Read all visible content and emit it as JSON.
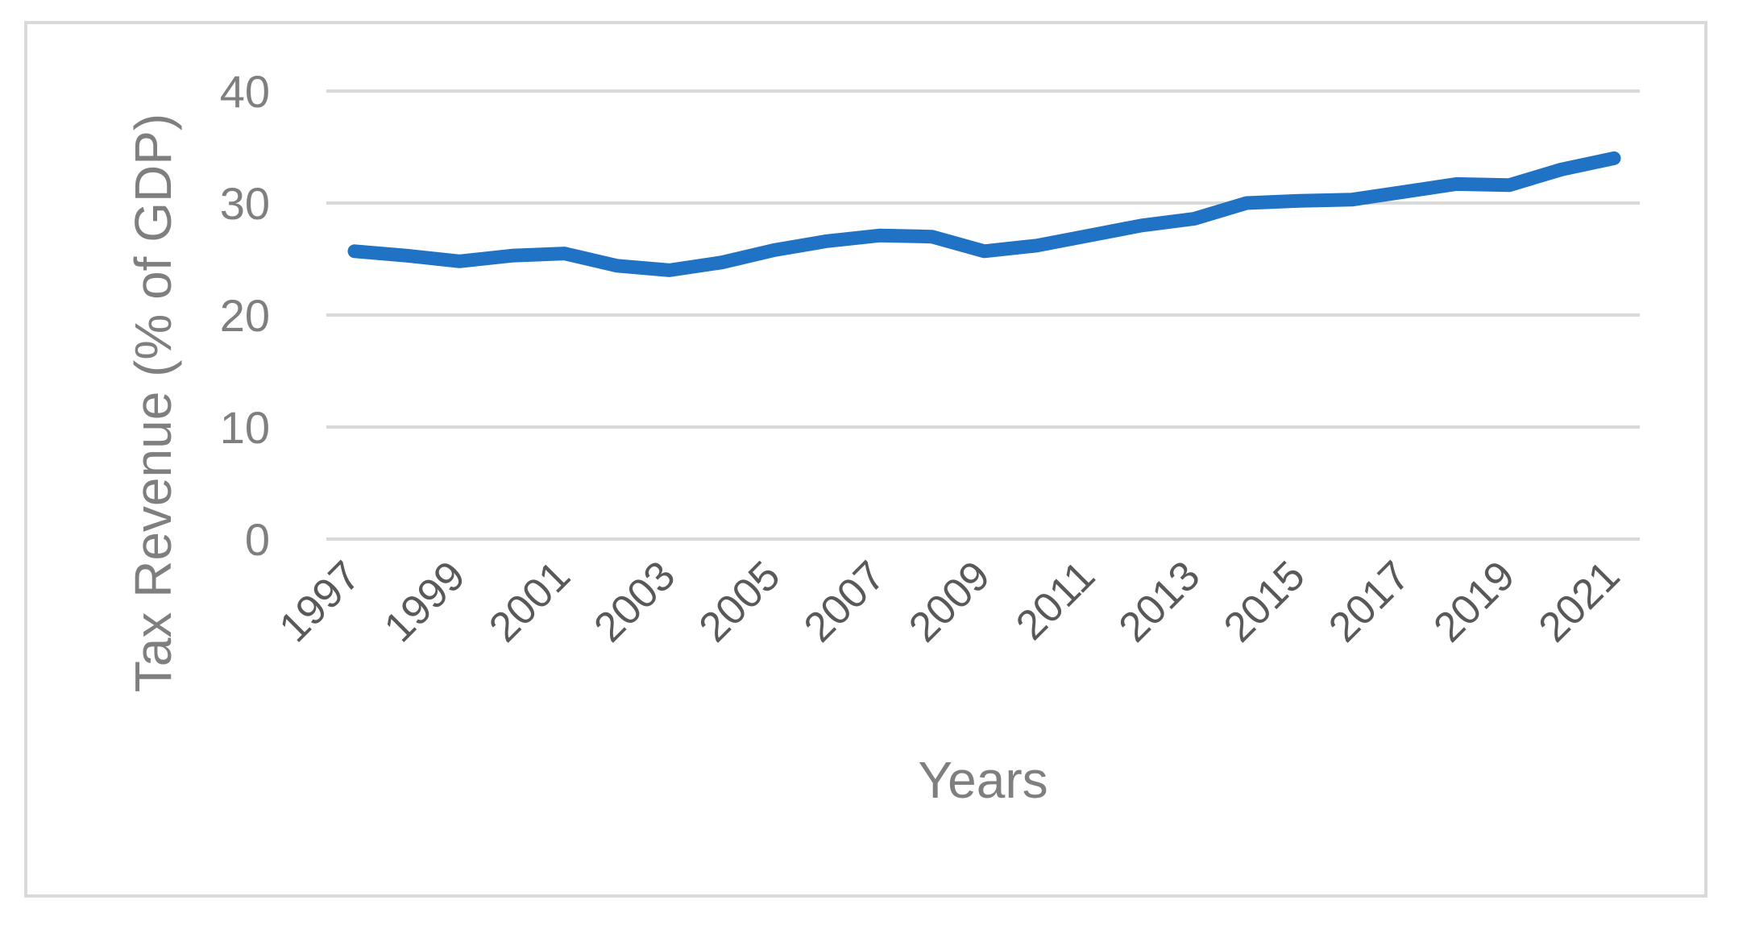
{
  "chart_data": {
    "type": "line",
    "xlabel": "Years",
    "ylabel": "Tax Revenue (% of GDP)",
    "ylim": [
      0,
      40
    ],
    "yticks": [
      0,
      10,
      20,
      30,
      40
    ],
    "x": [
      1997,
      1998,
      1999,
      2000,
      2001,
      2002,
      2003,
      2004,
      2005,
      2006,
      2007,
      2008,
      2009,
      2010,
      2011,
      2012,
      2013,
      2014,
      2015,
      2016,
      2017,
      2018,
      2019,
      2020,
      2021
    ],
    "xtick_labels": [
      "1997",
      "1999",
      "2001",
      "2003",
      "2005",
      "2007",
      "2009",
      "2011",
      "2013",
      "2015",
      "2017",
      "2019",
      "2021"
    ],
    "series": [
      {
        "values": [
          25.7,
          25.3,
          24.8,
          25.3,
          25.5,
          24.4,
          24.0,
          24.7,
          25.8,
          26.6,
          27.1,
          27.0,
          25.7,
          26.2,
          27.1,
          28.0,
          28.6,
          30.0,
          30.2,
          30.3,
          31.0,
          31.7,
          31.6,
          33.0,
          34.0
        ],
        "color": "#1f72c4"
      }
    ],
    "grid": true,
    "legend": "none"
  }
}
